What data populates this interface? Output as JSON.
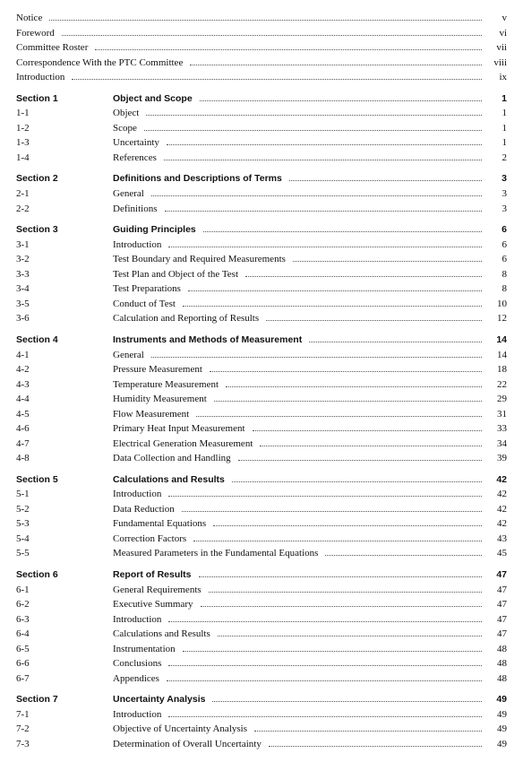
{
  "front": [
    {
      "title": "Notice",
      "page": "v"
    },
    {
      "title": "Foreword",
      "page": "vi"
    },
    {
      "title": "Committee Roster",
      "page": "vii"
    },
    {
      "title": "Correspondence With the PTC Committee",
      "page": "viii"
    },
    {
      "title": "Introduction",
      "page": "ix"
    }
  ],
  "sections": [
    {
      "num": "Section 1",
      "title": "Object and Scope",
      "page": "1",
      "items": [
        {
          "num": "1-1",
          "title": "Object",
          "page": "1"
        },
        {
          "num": "1-2",
          "title": "Scope",
          "page": "1"
        },
        {
          "num": "1-3",
          "title": "Uncertainty",
          "page": "1"
        },
        {
          "num": "1-4",
          "title": "References",
          "page": "2"
        }
      ]
    },
    {
      "num": "Section 2",
      "title": "Definitions and Descriptions of Terms",
      "page": "3",
      "items": [
        {
          "num": "2-1",
          "title": "General",
          "page": "3"
        },
        {
          "num": "2-2",
          "title": "Definitions",
          "page": "3"
        }
      ]
    },
    {
      "num": "Section 3",
      "title": "Guiding Principles",
      "page": "6",
      "items": [
        {
          "num": "3-1",
          "title": "Introduction",
          "page": "6"
        },
        {
          "num": "3-2",
          "title": "Test Boundary and Required Measurements",
          "page": "6"
        },
        {
          "num": "3-3",
          "title": "Test Plan and Object of the Test",
          "page": "8"
        },
        {
          "num": "3-4",
          "title": "Test Preparations",
          "page": "8"
        },
        {
          "num": "3-5",
          "title": "Conduct of Test",
          "page": "10"
        },
        {
          "num": "3-6",
          "title": "Calculation and Reporting of Results",
          "page": "12"
        }
      ]
    },
    {
      "num": "Section 4",
      "title": "Instruments and Methods of Measurement",
      "page": "14",
      "items": [
        {
          "num": "4-1",
          "title": "General",
          "page": "14"
        },
        {
          "num": "4-2",
          "title": "Pressure Measurement",
          "page": "18"
        },
        {
          "num": "4-3",
          "title": "Temperature Measurement",
          "page": "22"
        },
        {
          "num": "4-4",
          "title": "Humidity Measurement",
          "page": "29"
        },
        {
          "num": "4-5",
          "title": "Flow Measurement",
          "page": "31"
        },
        {
          "num": "4-6",
          "title": "Primary Heat Input Measurement",
          "page": "33"
        },
        {
          "num": "4-7",
          "title": "Electrical Generation Measurement",
          "page": "34"
        },
        {
          "num": "4-8",
          "title": "Data Collection and Handling",
          "page": "39"
        }
      ]
    },
    {
      "num": "Section 5",
      "title": "Calculations and Results",
      "page": "42",
      "items": [
        {
          "num": "5-1",
          "title": "Introduction",
          "page": "42"
        },
        {
          "num": "5-2",
          "title": "Data Reduction",
          "page": "42"
        },
        {
          "num": "5-3",
          "title": "Fundamental Equations",
          "page": "42"
        },
        {
          "num": "5-4",
          "title": "Correction Factors",
          "page": "43"
        },
        {
          "num": "5-5",
          "title": "Measured Parameters in the Fundamental Equations",
          "page": "45"
        }
      ]
    },
    {
      "num": "Section 6",
      "title": "Report of Results",
      "page": "47",
      "items": [
        {
          "num": "6-1",
          "title": "General Requirements",
          "page": "47"
        },
        {
          "num": "6-2",
          "title": "Executive Summary",
          "page": "47"
        },
        {
          "num": "6-3",
          "title": "Introduction",
          "page": "47"
        },
        {
          "num": "6-4",
          "title": "Calculations and Results",
          "page": "47"
        },
        {
          "num": "6-5",
          "title": "Instrumentation",
          "page": "48"
        },
        {
          "num": "6-6",
          "title": "Conclusions",
          "page": "48"
        },
        {
          "num": "6-7",
          "title": "Appendices",
          "page": "48"
        }
      ]
    },
    {
      "num": "Section 7",
      "title": "Uncertainty Analysis",
      "page": "49",
      "items": [
        {
          "num": "7-1",
          "title": "Introduction",
          "page": "49"
        },
        {
          "num": "7-2",
          "title": "Objective of Uncertainty Analysis",
          "page": "49"
        },
        {
          "num": "7-3",
          "title": "Determination of Overall Uncertainty",
          "page": "49"
        }
      ]
    }
  ]
}
